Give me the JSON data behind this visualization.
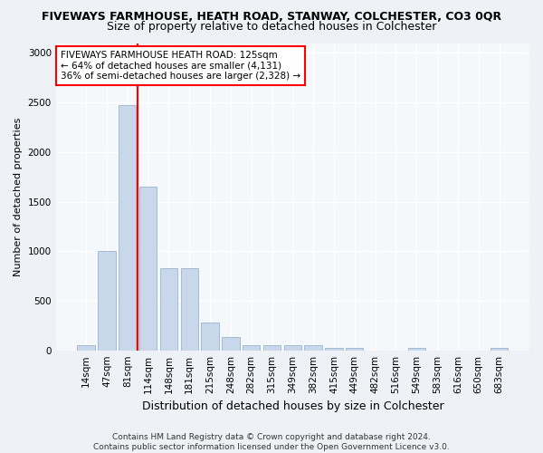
{
  "title": "FIVEWAYS FARMHOUSE, HEATH ROAD, STANWAY, COLCHESTER, CO3 0QR",
  "subtitle": "Size of property relative to detached houses in Colchester",
  "xlabel": "Distribution of detached houses by size in Colchester",
  "ylabel": "Number of detached properties",
  "categories": [
    "14sqm",
    "47sqm",
    "81sqm",
    "114sqm",
    "148sqm",
    "181sqm",
    "215sqm",
    "248sqm",
    "282sqm",
    "315sqm",
    "349sqm",
    "382sqm",
    "415sqm",
    "449sqm",
    "482sqm",
    "516sqm",
    "549sqm",
    "583sqm",
    "616sqm",
    "650sqm",
    "683sqm"
  ],
  "values": [
    55,
    1000,
    2470,
    1650,
    830,
    830,
    280,
    130,
    50,
    50,
    50,
    50,
    20,
    20,
    0,
    0,
    20,
    0,
    0,
    0,
    20
  ],
  "bar_color": "#c8d8ea",
  "bar_edgecolor": "#9ab4cc",
  "vline_x": 2.5,
  "vline_color": "red",
  "annotation_text": "FIVEWAYS FARMHOUSE HEATH ROAD: 125sqm\n← 64% of detached houses are smaller (4,131)\n36% of semi-detached houses are larger (2,328) →",
  "annotation_box_color": "white",
  "annotation_box_edgecolor": "red",
  "ylim": [
    0,
    3100
  ],
  "yticks": [
    0,
    500,
    1000,
    1500,
    2000,
    2500,
    3000
  ],
  "footer": "Contains HM Land Registry data © Crown copyright and database right 2024.\nContains public sector information licensed under the Open Government Licence v3.0.",
  "bg_color": "#eef2f6",
  "axes_bg_color": "#f5f8fb",
  "title_fontsize": 9,
  "subtitle_fontsize": 9,
  "ylabel_fontsize": 8,
  "xlabel_fontsize": 9,
  "tick_fontsize": 7.5,
  "annot_fontsize": 7.5,
  "footer_fontsize": 6.5
}
